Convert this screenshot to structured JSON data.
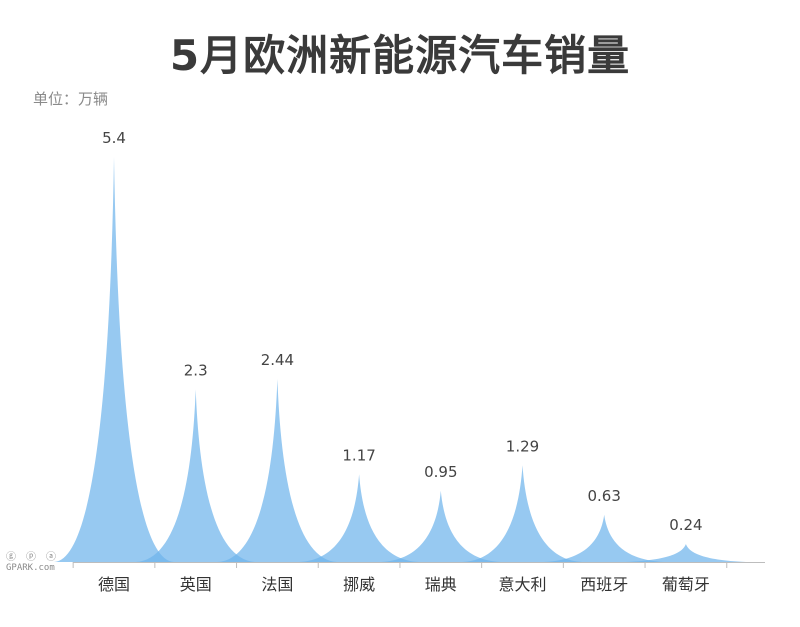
{
  "chart_data": {
    "type": "area",
    "title": "5月欧洲新能源汽车销量",
    "unit_label": "单位：万辆",
    "categories": [
      "德国",
      "英国",
      "法国",
      "挪威",
      "瑞典",
      "意大利",
      "西班牙",
      "葡萄牙"
    ],
    "values": [
      5.4,
      2.3,
      2.44,
      1.17,
      0.95,
      1.29,
      0.63,
      0.24
    ],
    "value_labels": [
      "5.4",
      "2.3",
      "2.44",
      "1.17",
      "0.95",
      "1.29",
      "0.63",
      "0.24"
    ],
    "ylim": [
      0,
      5.4
    ],
    "grid": false,
    "legend": "none",
    "fill_color": "#6fb4ec",
    "axis_color": "#bdbdbd"
  },
  "watermark": {
    "glyphs": "ⓖ ⓟ ⓐ",
    "text": "GPARK.com"
  }
}
